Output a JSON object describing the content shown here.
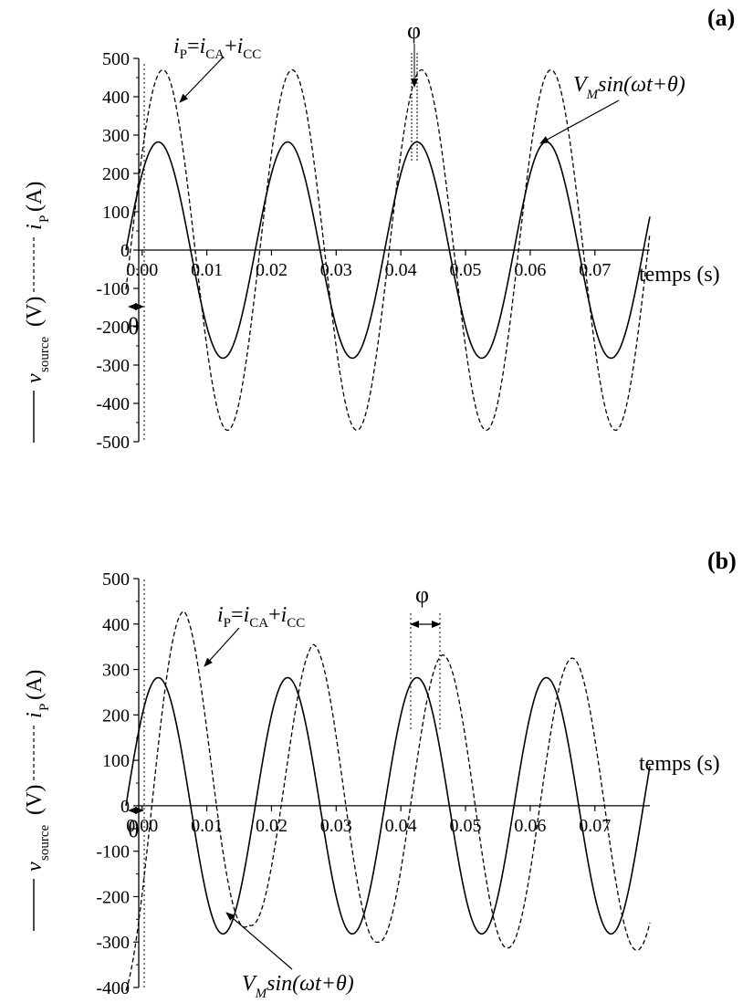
{
  "chart_data": [
    {
      "type": "line",
      "panel_label": "(a)",
      "xlabel": "temps (s)",
      "ylabel": "v_source(V) i_P(A)",
      "ylabel_parts": {
        "v_main": "v",
        "v_sub": "source",
        "v_unit": "(V)",
        "i_main": "i",
        "i_sub": "P",
        "i_unit": "(A)"
      },
      "xlim": [
        -0.0025,
        0.0785
      ],
      "ylim": [
        -500,
        500
      ],
      "x_ticks": [
        "0.00",
        "0.01",
        "0.02",
        "0.03",
        "0.04",
        "0.05",
        "0.06",
        "0.07"
      ],
      "x_tick_values": [
        0.0,
        0.01,
        0.02,
        0.03,
        0.04,
        0.05,
        0.06,
        0.07
      ],
      "y_ticks": [
        "500",
        "400",
        "300",
        "200",
        "100",
        "0",
        "-100",
        "-200",
        "-300",
        "-400",
        "-500"
      ],
      "y_tick_values": [
        500,
        400,
        300,
        200,
        100,
        0,
        -100,
        -200,
        -300,
        -400,
        -500
      ],
      "series": [
        {
          "style": "solid",
          "amplitude": 282,
          "frequency_hz": 50,
          "x_start": -0.0025,
          "zero_cross": -0.0025,
          "x_end": 0.0785
        },
        {
          "style": "dashed",
          "amplitude": 470,
          "frequency_hz": 50,
          "x_start": -0.0025,
          "zero_cross": -0.0018,
          "x_end": 0.0785
        }
      ],
      "annotations": {
        "current_label": {
          "main": "i",
          "sub1": "P",
          "mid": "=",
          "a": "i",
          "sub2": "CA",
          "plus": "+",
          "b": "i",
          "sub3": "CC"
        },
        "voltage_label": {
          "v": "V",
          "sub": "M",
          "rest": "sin(ωt+θ)"
        },
        "theta": "θ",
        "phi": "φ"
      }
    },
    {
      "type": "line",
      "panel_label": "(b)",
      "xlabel": "temps (s)",
      "ylabel": "v_source(V) i_P(A)",
      "ylabel_parts": {
        "v_main": "v",
        "v_sub": "source",
        "v_unit": "(V)",
        "i_main": "i",
        "i_sub": "P",
        "i_unit": "(A)"
      },
      "xlim": [
        -0.0025,
        0.0785
      ],
      "ylim": [
        -400,
        500
      ],
      "x_ticks": [
        "0.00",
        "0.01",
        "0.02",
        "0.03",
        "0.04",
        "0.05",
        "0.06",
        "0.07"
      ],
      "x_tick_values": [
        0.0,
        0.01,
        0.02,
        0.03,
        0.04,
        0.05,
        0.06,
        0.07
      ],
      "y_ticks": [
        "500",
        "400",
        "300",
        "200",
        "100",
        "0",
        "-100",
        "-200",
        "-300",
        "-400"
      ],
      "y_tick_values": [
        500,
        400,
        300,
        200,
        100,
        0,
        -100,
        -200,
        -300,
        -400
      ],
      "series": [
        {
          "style": "solid",
          "amplitude": 282,
          "frequency_hz": 50,
          "x_start": -0.0025,
          "zero_cross": -0.0025,
          "x_end": 0.0785
        },
        {
          "style": "dashed",
          "amplitude_points": [
            [
              0.0065,
              428
            ],
            [
              0.0165,
              -262
            ],
            [
              0.0265,
              355
            ],
            [
              0.0365,
              -300
            ],
            [
              0.0465,
              332
            ],
            [
              0.0565,
              -313
            ],
            [
              0.0665,
              325
            ],
            [
              0.0765,
              -318
            ]
          ],
          "frequency_hz": 50,
          "x_start": -0.0025,
          "zero_cross": 0.0015,
          "x_end": 0.0785
        }
      ],
      "annotations": {
        "current_label": {
          "main": "i",
          "sub1": "P",
          "mid": "=",
          "a": "i",
          "sub2": "CA",
          "plus": "+",
          "b": "i",
          "sub3": "CC"
        },
        "voltage_label": {
          "v": "V",
          "sub": "M",
          "rest": "sin(ωt+θ)"
        },
        "theta": "θ",
        "phi": "φ"
      }
    }
  ]
}
